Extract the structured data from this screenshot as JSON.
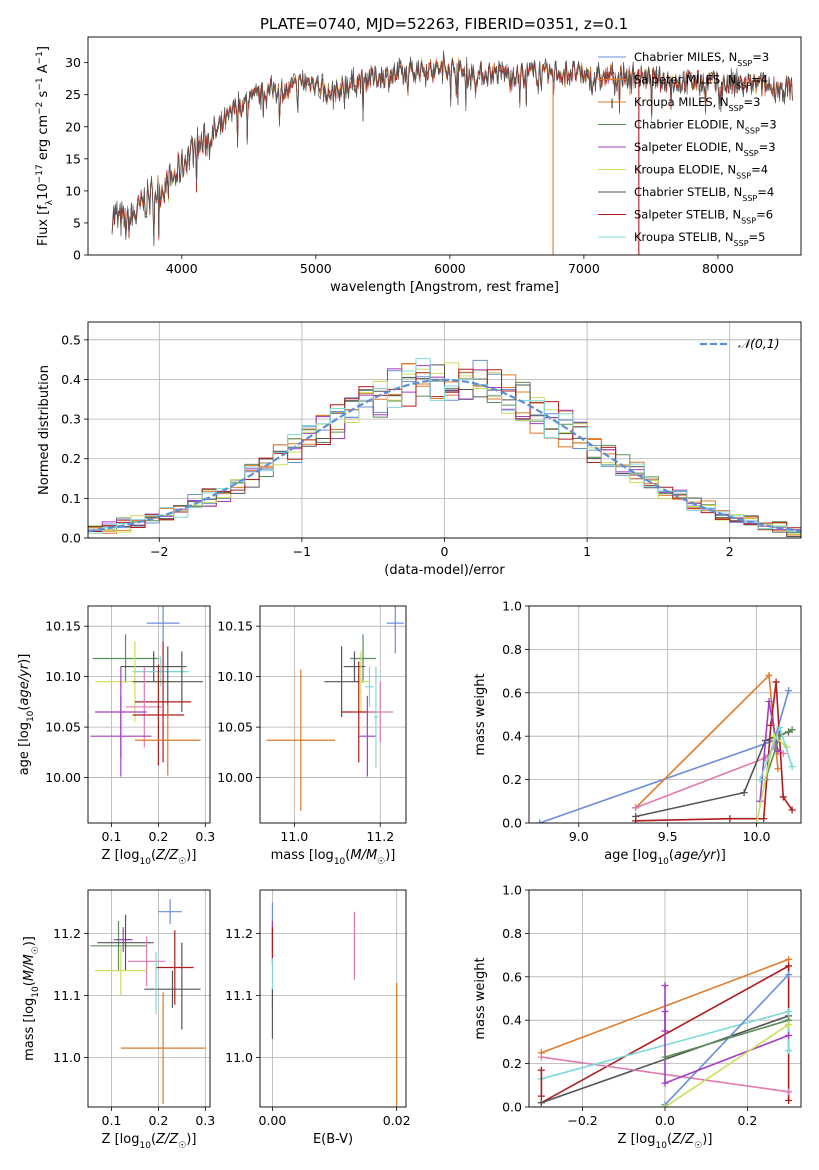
{
  "figure_title": "PLATE=0740, MJD=52263, FIBERID=0351, z=0.1",
  "colors": {
    "Chabrier MILES": "#6a8fd8",
    "Salpeter MILES": "#e07a28",
    "Kroupa MILES": "#e07a28",
    "Chabrier ELODIE": "#5a8f5a",
    "Salpeter ELODIE": "#a23fc4",
    "Kroupa ELODIE": "#c8e05a",
    "Chabrier STELIB": "#555555",
    "Salpeter STELIB": "#b01c1c",
    "Kroupa STELIB": "#7fd8d8",
    "extra_pink": "#e07ab0",
    "normal_fit": "#5b8fd6",
    "grid": "#b0b0b0"
  },
  "chart_data": [
    {
      "id": "spectrum",
      "type": "line",
      "title": "PLATE=0740, MJD=52263, FIBERID=0351, z=0.1",
      "xlabel": "wavelength [Angstrom, rest frame]",
      "ylabel": "Flux [f_λ 10^-17 erg cm^-2 s^-1 A^-1]",
      "xlim": [
        3300,
        8620
      ],
      "ylim": [
        0,
        34
      ],
      "xticks": [
        4000,
        5000,
        6000,
        7000,
        8000
      ],
      "yticks": [
        0,
        5,
        10,
        15,
        20,
        25,
        30
      ],
      "legend_loc": "upper right",
      "series": [
        {
          "name": "Chabrier MILES, N_SSP=3"
        },
        {
          "name": "Salpeter MILES, N_SSP=4"
        },
        {
          "name": "Kroupa MILES, N_SSP=3"
        },
        {
          "name": "Chabrier ELODIE, N_SSP=3"
        },
        {
          "name": "Salpeter ELODIE, N_SSP=3"
        },
        {
          "name": "Kroupa ELODIE, N_SSP=4"
        },
        {
          "name": "Chabrier STELIB, N_SSP=4"
        },
        {
          "name": "Salpeter STELIB, N_SSP=6"
        },
        {
          "name": "Kroupa STELIB, N_SSP=5"
        }
      ],
      "continuum": [
        [
          3480,
          6
        ],
        [
          3600,
          5
        ],
        [
          3750,
          9
        ],
        [
          3900,
          11
        ],
        [
          4000,
          14
        ],
        [
          4100,
          17
        ],
        [
          4200,
          18
        ],
        [
          4300,
          20
        ],
        [
          4400,
          23
        ],
        [
          4500,
          24
        ],
        [
          4600,
          25
        ],
        [
          4700,
          26
        ],
        [
          4800,
          25.5
        ],
        [
          4900,
          27
        ],
        [
          5000,
          27
        ],
        [
          5100,
          25
        ],
        [
          5200,
          26
        ],
        [
          5300,
          27
        ],
        [
          5400,
          27.5
        ],
        [
          5500,
          28
        ],
        [
          5600,
          28
        ],
        [
          5700,
          28.5
        ],
        [
          5800,
          29
        ],
        [
          5900,
          29
        ],
        [
          6000,
          29.5
        ],
        [
          6100,
          28.5
        ],
        [
          6200,
          28
        ],
        [
          6300,
          28.5
        ],
        [
          6400,
          28.5
        ],
        [
          6500,
          28
        ],
        [
          6600,
          28.5
        ],
        [
          6700,
          28
        ],
        [
          6800,
          28.5
        ],
        [
          6900,
          28.5
        ],
        [
          7000,
          28
        ],
        [
          7100,
          27.5
        ],
        [
          7200,
          28
        ],
        [
          7300,
          28
        ],
        [
          7500,
          27.5
        ],
        [
          7700,
          27
        ],
        [
          7900,
          27
        ],
        [
          8100,
          26.5
        ],
        [
          8300,
          26.5
        ],
        [
          8500,
          26
        ]
      ],
      "spikes": [
        {
          "x": 6770,
          "y_bottom": 0,
          "y_top": 27,
          "series": "Kroupa MILES, N_SSP=3"
        },
        {
          "x": 7410,
          "y_bottom": 0,
          "y_top": 29,
          "series": "Salpeter STELIB, N_SSP=6"
        }
      ]
    },
    {
      "id": "residuals",
      "type": "histogram",
      "xlabel": "(data-model)/error",
      "ylabel": "Normed distribution",
      "xlim": [
        -2.5,
        2.5
      ],
      "ylim": [
        0,
        0.545
      ],
      "xticks": [
        -2,
        -1,
        0,
        1,
        2
      ],
      "yticks": [
        0.0,
        0.1,
        0.2,
        0.3,
        0.4,
        0.5
      ],
      "legend_loc": "upper right",
      "reference": {
        "name": "𝒩(0,1)",
        "mean": 0,
        "sigma": 1
      },
      "bin_width": 0.1
    },
    {
      "id": "age_vs_Z",
      "type": "errorbar",
      "xlabel": "Z [log10(Z/Z☉)]",
      "ylabel": "age  [log10(age/yr)]",
      "xlim": [
        0.05,
        0.31
      ],
      "ylim": [
        9.955,
        10.17
      ],
      "xticks": [
        0.1,
        0.2,
        0.3
      ],
      "yticks": [
        10.0,
        10.05,
        10.1,
        10.15
      ],
      "points": [
        {
          "color": "Chabrier MILES",
          "x": 0.21,
          "xerr": 0.035,
          "y": 10.153,
          "yerr": 0.018
        },
        {
          "color": "Chabrier ELODIE",
          "x": 0.13,
          "xerr": 0.07,
          "y": 10.118,
          "yerr": 0.024
        },
        {
          "color": "Chabrier STELIB",
          "x": 0.19,
          "xerr": 0.07,
          "y": 10.11,
          "yerr": 0.015
        },
        {
          "color": "Kroupa STELIB",
          "x": 0.205,
          "xerr": 0.06,
          "y": 10.105,
          "yerr": 0.015
        },
        {
          "color": "Kroupa ELODIE",
          "x": 0.15,
          "xerr": 0.085,
          "y": 10.095,
          "yerr": 0.04
        },
        {
          "color": "Chabrier STELIB",
          "x": 0.22,
          "xerr": 0.075,
          "y": 10.095,
          "yerr": 0.035
        },
        {
          "color": "Chabrier STELIB",
          "x": 0.25,
          "xerr": 0.0,
          "y": 10.095,
          "yerr": 0.03
        },
        {
          "color": "Salpeter STELIB",
          "x": 0.21,
          "xerr": 0.06,
          "y": 10.075,
          "yerr": 0.06
        },
        {
          "color": "extra_pink",
          "x": 0.17,
          "xerr": 0.04,
          "y": 10.07,
          "yerr": 0.04
        },
        {
          "color": "Salpeter ELODIE",
          "x": 0.12,
          "xerr": 0.055,
          "y": 10.065,
          "yerr": 0.045
        },
        {
          "color": "Salpeter STELIB",
          "x": 0.2,
          "xerr": 0.055,
          "y": 10.062,
          "yerr": 0.05
        },
        {
          "color": "Salpeter ELODIE",
          "x": 0.12,
          "xerr": 0.065,
          "y": 10.041,
          "yerr": 0.04
        },
        {
          "color": "Salpeter MILES",
          "x": 0.22,
          "xerr": 0.07,
          "y": 10.037,
          "yerr": 0.035
        }
      ]
    },
    {
      "id": "age_vs_mass",
      "type": "errorbar",
      "xlabel": "mass [log10(M/M☉)]",
      "ylabel": "",
      "xlim": [
        10.92,
        11.26
      ],
      "ylim": [
        9.955,
        10.17
      ],
      "xticks": [
        11.0,
        11.2
      ],
      "yticks": [
        10.0,
        10.05,
        10.1,
        10.15
      ],
      "points": [
        {
          "color": "Chabrier MILES",
          "x": 11.235,
          "xerr": 0.02,
          "y": 10.153,
          "yerr": 0.03
        },
        {
          "color": "Chabrier ELODIE",
          "x": 11.16,
          "xerr": 0.03,
          "y": 10.118,
          "yerr": 0.024
        },
        {
          "color": "Chabrier STELIB",
          "x": 11.14,
          "xerr": 0.025,
          "y": 10.11,
          "yerr": 0.015
        },
        {
          "color": "Kroupa ELODIE",
          "x": 11.155,
          "xerr": 0.02,
          "y": 10.095,
          "yerr": 0.03
        },
        {
          "color": "Chabrier STELIB",
          "x": 11.11,
          "xerr": 0.04,
          "y": 10.095,
          "yerr": 0.035
        },
        {
          "color": "Kroupa STELIB",
          "x": 11.175,
          "xerr": 0.01,
          "y": 10.09,
          "yerr": 0.02
        },
        {
          "color": "Salpeter STELIB",
          "x": 11.15,
          "xerr": 0.04,
          "y": 10.065,
          "yerr": 0.05
        },
        {
          "color": "extra_pink",
          "x": 11.2,
          "xerr": 0.03,
          "y": 10.065,
          "yerr": 0.03
        },
        {
          "color": "Salpeter ELODIE",
          "x": 11.17,
          "xerr": 0.02,
          "y": 10.041,
          "yerr": 0.04
        },
        {
          "color": "Salpeter MILES",
          "x": 11.015,
          "xerr": 0.08,
          "y": 10.037,
          "yerr": 0.07
        },
        {
          "color": "Kroupa STELIB",
          "x": 11.19,
          "xerr": 0.005,
          "y": 10.06,
          "yerr": 0.05
        }
      ]
    },
    {
      "id": "massweight_vs_age",
      "type": "line",
      "xlabel": "age  [log10(age/yr)]",
      "ylabel": "mass weight",
      "xlim": [
        8.72,
        10.25
      ],
      "ylim": [
        0,
        1.0
      ],
      "xticks": [
        9.0,
        9.5,
        10.0
      ],
      "yticks": [
        0.0,
        0.2,
        0.4,
        0.6,
        0.8,
        1.0
      ],
      "series": [
        {
          "color": "Chabrier MILES",
          "points": [
            [
              8.78,
              0.0
            ],
            [
              10.1,
              0.38
            ],
            [
              10.18,
              0.61
            ]
          ]
        },
        {
          "color": "Salpeter MILES",
          "points": [
            [
              9.32,
              0.07
            ],
            [
              10.07,
              0.68
            ],
            [
              10.12,
              0.25
            ]
          ]
        },
        {
          "color": "extra_pink",
          "points": [
            [
              9.32,
              0.07
            ],
            [
              10.05,
              0.3
            ],
            [
              10.1,
              0.35
            ],
            [
              10.15,
              0.32
            ]
          ]
        },
        {
          "color": "Chabrier STELIB",
          "points": [
            [
              9.32,
              0.03
            ],
            [
              9.93,
              0.14
            ],
            [
              10.05,
              0.38
            ],
            [
              10.18,
              0.42
            ]
          ]
        },
        {
          "color": "Salpeter STELIB",
          "points": [
            [
              9.32,
              0.01
            ],
            [
              9.85,
              0.02
            ],
            [
              10.04,
              0.02
            ],
            [
              10.08,
              0.45
            ],
            [
              10.11,
              0.65
            ],
            [
              10.15,
              0.12
            ],
            [
              10.2,
              0.06
            ]
          ]
        },
        {
          "color": "Salpeter ELODIE",
          "points": [
            [
              10.02,
              0.1
            ],
            [
              10.07,
              0.56
            ],
            [
              10.12,
              0.33
            ]
          ]
        },
        {
          "color": "Chabrier ELODIE",
          "points": [
            [
              10.05,
              0.2
            ],
            [
              10.13,
              0.4
            ],
            [
              10.2,
              0.43
            ]
          ]
        },
        {
          "color": "Kroupa ELODIE",
          "points": [
            [
              10.0,
              0.0
            ],
            [
              10.1,
              0.4
            ],
            [
              10.17,
              0.35
            ]
          ]
        },
        {
          "color": "Kroupa STELIB",
          "points": [
            [
              10.02,
              0.2
            ],
            [
              10.13,
              0.44
            ],
            [
              10.2,
              0.26
            ]
          ]
        }
      ]
    },
    {
      "id": "mass_vs_Z",
      "type": "errorbar",
      "xlabel": "Z [log10(Z/Z☉)]",
      "ylabel": "mass [log10(M/M☉)]",
      "xlim": [
        0.05,
        0.31
      ],
      "ylim": [
        10.92,
        11.27
      ],
      "xticks": [
        0.1,
        0.2,
        0.3
      ],
      "yticks": [
        11.0,
        11.1,
        11.2
      ],
      "points": [
        {
          "color": "Chabrier MILES",
          "x": 0.225,
          "xerr": 0.025,
          "y": 11.235,
          "yerr": 0.02
        },
        {
          "color": "Salpeter ELODIE",
          "x": 0.125,
          "xerr": 0.02,
          "y": 11.19,
          "yerr": 0.02
        },
        {
          "color": "Chabrier ELODIE",
          "x": 0.115,
          "xerr": 0.06,
          "y": 11.18,
          "yerr": 0.04
        },
        {
          "color": "Chabrier STELIB",
          "x": 0.13,
          "xerr": 0.06,
          "y": 11.185,
          "yerr": 0.045
        },
        {
          "color": "extra_pink",
          "x": 0.175,
          "xerr": 0.04,
          "y": 11.155,
          "yerr": 0.04
        },
        {
          "color": "Salpeter STELIB",
          "x": 0.235,
          "xerr": 0.04,
          "y": 11.145,
          "yerr": 0.06
        },
        {
          "color": "Kroupa ELODIE",
          "x": 0.12,
          "xerr": 0.055,
          "y": 11.14,
          "yerr": 0.04
        },
        {
          "color": "Chabrier STELIB",
          "x": 0.23,
          "xerr": 0.06,
          "y": 11.11,
          "yerr": 0.03
        },
        {
          "color": "Chabrier STELIB",
          "x": 0.25,
          "xerr": 0.0,
          "y": 11.115,
          "yerr": 0.07
        },
        {
          "color": "Kroupa STELIB",
          "x": 0.195,
          "xerr": 0.0,
          "y": 11.12,
          "yerr": 0.05
        },
        {
          "color": "Salpeter MILES",
          "x": 0.21,
          "xerr": 0.09,
          "y": 11.015,
          "yerr": 0.09
        }
      ]
    },
    {
      "id": "mass_vs_EBV",
      "type": "errorbar",
      "xlabel": "E(B-V)",
      "ylabel": "",
      "xlim": [
        -0.002,
        0.0215
      ],
      "ylim": [
        10.92,
        11.27
      ],
      "xticks": [
        0.0,
        0.02
      ],
      "yticks": [
        11.0,
        11.1,
        11.2
      ],
      "points": [
        {
          "color": "Chabrier MILES",
          "x": 0.0,
          "xerr": 0,
          "y": 11.21,
          "yerr": 0.04
        },
        {
          "color": "Salpeter ELODIE",
          "x": 0.0,
          "xerr": 0,
          "y": 11.19,
          "yerr": 0.03
        },
        {
          "color": "Salpeter STELIB",
          "x": 0.0,
          "xerr": 0,
          "y": 11.18,
          "yerr": 0.03
        },
        {
          "color": "Kroupa STELIB",
          "x": 0.0,
          "xerr": 0,
          "y": 11.12,
          "yerr": 0.04
        },
        {
          "color": "Chabrier STELIB",
          "x": 0.0,
          "xerr": 0,
          "y": 11.07,
          "yerr": 0.04
        },
        {
          "color": "extra_pink",
          "x": 0.0132,
          "xerr": 0,
          "y": 11.18,
          "yerr": 0.055
        },
        {
          "color": "Salpeter MILES",
          "x": 0.02,
          "xerr": 0,
          "y": 11.02,
          "yerr": 0.1
        }
      ]
    },
    {
      "id": "massweight_vs_Z",
      "type": "line",
      "xlabel": "Z [log10(Z/Z☉)]",
      "ylabel": "mass weight",
      "xlim": [
        -0.33,
        0.33
      ],
      "ylim": [
        0,
        1.0
      ],
      "xticks": [
        -0.2,
        0.0,
        0.2
      ],
      "yticks": [
        0.0,
        0.2,
        0.4,
        0.6,
        0.8,
        1.0
      ],
      "series": [
        {
          "color": "Salpeter MILES",
          "points": [
            [
              -0.3,
              0.25
            ],
            [
              0.3,
              0.68
            ]
          ]
        },
        {
          "color": "Salpeter STELIB",
          "points": [
            [
              -0.3,
              0.02
            ],
            [
              0.3,
              0.65
            ],
            [
              0.3,
              0.03
            ]
          ]
        },
        {
          "color": "Chabrier STELIB",
          "points": [
            [
              -0.3,
              0.02
            ],
            [
              0.3,
              0.42
            ]
          ]
        },
        {
          "color": "extra_pink",
          "points": [
            [
              -0.3,
              0.23
            ],
            [
              0.3,
              0.07
            ]
          ]
        },
        {
          "color": "Kroupa STELIB",
          "points": [
            [
              -0.3,
              0.13
            ],
            [
              0.3,
              0.44
            ],
            [
              0.3,
              0.26
            ]
          ]
        },
        {
          "color": "Chabrier MILES",
          "points": [
            [
              0.0,
              0.01
            ],
            [
              0.3,
              0.61
            ]
          ]
        },
        {
          "color": "Salpeter ELODIE",
          "points": [
            [
              0.0,
              0.56
            ],
            [
              0.0,
              0.11
            ],
            [
              0.3,
              0.33
            ]
          ]
        },
        {
          "color": "Chabrier ELODIE",
          "points": [
            [
              0.0,
              0.23
            ],
            [
              0.3,
              0.4
            ]
          ]
        },
        {
          "color": "Kroupa ELODIE",
          "points": [
            [
              0.0,
              0.0
            ],
            [
              0.3,
              0.38
            ]
          ]
        },
        {
          "color": "Salpeter STELIB",
          "points": [
            [
              -0.3,
              0.05
            ],
            [
              -0.3,
              0.17
            ]
          ]
        },
        {
          "color": "Salpeter ELODIE",
          "points": [
            [
              0.0,
              0.44
            ],
            [
              0.0,
              0.35
            ]
          ]
        }
      ]
    }
  ]
}
